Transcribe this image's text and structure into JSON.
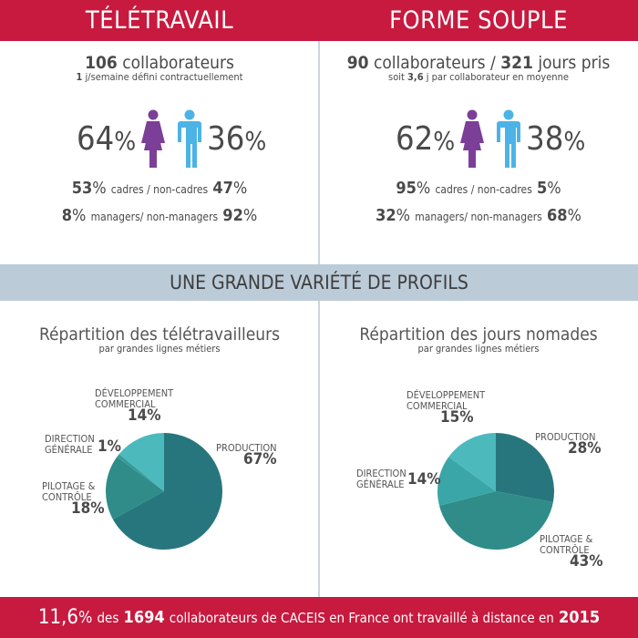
{
  "header": {
    "left_title": "TÉLÉTRAVAIL",
    "right_title": "FORME SOUPLE"
  },
  "teletravail": {
    "count": "106",
    "count_label": "collaborateurs",
    "sub_bold": "1",
    "sub_text": "j/semaine défini contractuellement",
    "women_pct": "64",
    "men_pct": "36",
    "cadres": "53",
    "cadres_label": "cadres / non-cadres",
    "non_cadres": "47",
    "managers": "8",
    "managers_label": "managers/ non-managers",
    "non_managers": "92"
  },
  "forme_souple": {
    "count": "90",
    "count_label": "collaborateurs /",
    "days": "321",
    "days_label": "jours pris",
    "sub_pre": "soit",
    "sub_bold": "3,6",
    "sub_text": "j par collaborateur en moyenne",
    "women_pct": "62",
    "men_pct": "38",
    "cadres": "95",
    "cadres_label": "cadres / non-cadres",
    "non_cadres": "5",
    "managers": "32",
    "managers_label": "managers/ non-managers",
    "non_managers": "68"
  },
  "percent_sign": "%",
  "band_title": "UNE GRANDE VARIÉTÉ DE PROFILS",
  "colors": {
    "brand_red": "#c8193e",
    "women": "#7b3f98",
    "men": "#4db3e6",
    "band": "#bccbd8"
  },
  "icons": {
    "women": "woman-icon",
    "men": "man-icon"
  },
  "chart_data": [
    {
      "type": "pie",
      "title": "Répartition des télétravailleurs",
      "subtitle": "par grandes lignes métiers",
      "labels": [
        "PRODUCTION",
        "PILOTAGE & CONTRÔLE",
        "DIRECTION GÉNÉRALE",
        "DÉVELOPPEMENT COMMERCIAL"
      ],
      "values": [
        67,
        18,
        1,
        14
      ],
      "value_labels": [
        "67%",
        "18%",
        "1%",
        "14%"
      ],
      "colors": [
        "#27767e",
        "#2f8c88",
        "#359a98",
        "#4cb9bd"
      ]
    },
    {
      "type": "pie",
      "title": "Répartition des jours nomades",
      "subtitle": "par grandes lignes métiers",
      "labels": [
        "PRODUCTION",
        "PILOTAGE & CONTRÔLE",
        "DIRECTION GÉNÉRALE",
        "DÉVELOPPEMENT COMMERCIAL"
      ],
      "values": [
        28,
        43,
        14,
        15
      ],
      "value_labels": [
        "28%",
        "43%",
        "14%",
        "15%"
      ],
      "colors": [
        "#27767e",
        "#2f8c88",
        "#3aa6a8",
        "#4cb9bd"
      ]
    }
  ],
  "footer": {
    "pct": "11,6",
    "pct_sign": "%",
    "t1": "des",
    "total": "1694",
    "t2": "collaborateurs de CACEIS en France ont travaillé à distance en",
    "year": "2015"
  }
}
